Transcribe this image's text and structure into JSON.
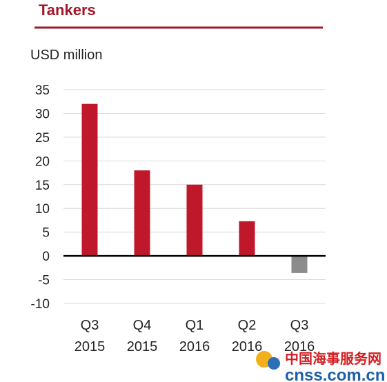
{
  "chart_data": {
    "type": "bar",
    "title": "Tankers",
    "ylabel": "USD million",
    "categories": [
      [
        "Q3",
        "2015"
      ],
      [
        "Q4",
        "2015"
      ],
      [
        "Q1",
        "2016"
      ],
      [
        "Q2",
        "2016"
      ],
      [
        "Q3",
        "2016"
      ]
    ],
    "values": [
      32,
      18,
      15,
      7.3,
      -3.6
    ],
    "ylim": [
      -10,
      35
    ],
    "yticks": [
      35,
      30,
      25,
      20,
      15,
      10,
      5,
      0,
      -5,
      -10
    ],
    "grid": true,
    "colors": {
      "positive": "#c0182b",
      "negative": "#8c8c8c",
      "title": "#a0192b",
      "rule": "#a0192b",
      "grid": "#d9d9d9",
      "zero_line": "#000000"
    }
  },
  "watermark": {
    "line1": "中国海事服务网",
    "line2": "cnss.com.cn",
    "colors": {
      "line1": "#d21f24",
      "line2": "#1e5fa8",
      "dot_yellow": "#f2b01e",
      "dot_blue": "#2d6fb7"
    }
  }
}
